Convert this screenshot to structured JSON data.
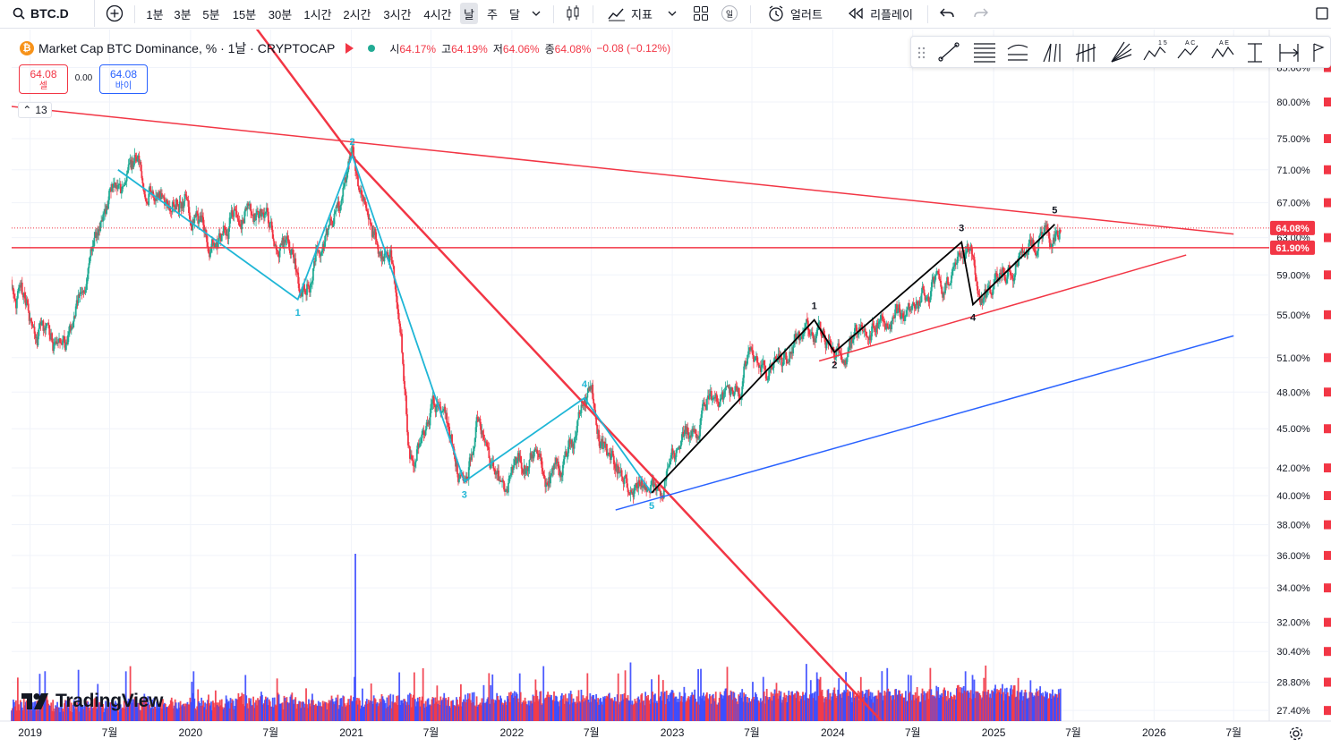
{
  "toolbar": {
    "symbol": "BTC.D",
    "intervals": [
      "1분",
      "3분",
      "5분",
      "15분",
      "30분",
      "1시간",
      "2시간",
      "3시간",
      "4시간",
      "날",
      "주",
      "달"
    ],
    "active_interval": "날",
    "indicators_label": "지표",
    "alert_label": "얼러트",
    "replay_label": "리플레이",
    "layout_badge": "일"
  },
  "legend": {
    "title": "Market Cap BTC Dominance, % · 1날 · CRYPTOCAP",
    "coin_glyph": "₿",
    "open_label": "시",
    "open": "64.17%",
    "high_label": "고",
    "high": "64.19%",
    "low_label": "저",
    "low": "64.06%",
    "close_label": "종",
    "close": "64.08%",
    "change": "−0.08 (−0.12%)"
  },
  "trade": {
    "sell_price": "64.08",
    "sell_label": "셀",
    "spread": "0.00",
    "buy_price": "64.08",
    "buy_label": "바이"
  },
  "collapse": {
    "glyph": "⌃",
    "count": "13"
  },
  "brand": {
    "name": "TradingView"
  },
  "colors": {
    "up": "#22ab94",
    "down": "#f23645",
    "volume_up": "#f23645",
    "volume_down": "#3949ff",
    "trendline": "#f23645",
    "wave_cyan": "#1fb6d6",
    "wave_black": "#000000",
    "support_blue": "#2962ff",
    "text": "#131722",
    "grid": "#f0f3fa"
  },
  "chart_data": {
    "type": "candlestick",
    "symbol": "BTC.D",
    "y_scale": "log",
    "ylim": [
      27.0,
      86.0
    ],
    "yticks": [
      85,
      80,
      75,
      71,
      67,
      63,
      59,
      55,
      51,
      48,
      45,
      42,
      40,
      38,
      36,
      34,
      32,
      30.4,
      28.8,
      27.4
    ],
    "xlim": [
      "2018-11-20",
      "2026-09-20"
    ],
    "xticks": [
      {
        "d": "2019-01-01",
        "label": "2019"
      },
      {
        "d": "2019-07-01",
        "label": "7월"
      },
      {
        "d": "2020-01-01",
        "label": "2020"
      },
      {
        "d": "2020-07-01",
        "label": "7월"
      },
      {
        "d": "2021-01-01",
        "label": "2021"
      },
      {
        "d": "2021-07-01",
        "label": "7월"
      },
      {
        "d": "2022-01-01",
        "label": "2022"
      },
      {
        "d": "2022-07-01",
        "label": "7월"
      },
      {
        "d": "2023-01-01",
        "label": "2023"
      },
      {
        "d": "2023-07-01",
        "label": "7월"
      },
      {
        "d": "2024-01-01",
        "label": "2024"
      },
      {
        "d": "2024-07-01",
        "label": "7월"
      },
      {
        "d": "2025-01-01",
        "label": "2025"
      },
      {
        "d": "2025-07-01",
        "label": "7월"
      },
      {
        "d": "2026-01-01",
        "label": "2026"
      },
      {
        "d": "2026-07-01",
        "label": "7월"
      }
    ],
    "price_path": [
      [
        "2018-11-20",
        58.5
      ],
      [
        "2018-12-20",
        56.0
      ],
      [
        "2019-01-10",
        54.0
      ],
      [
        "2019-02-01",
        52.5
      ],
      [
        "2019-03-01",
        52.0
      ],
      [
        "2019-04-01",
        53.0
      ],
      [
        "2019-04-20",
        56.0
      ],
      [
        "2019-05-15",
        60.0
      ],
      [
        "2019-06-01",
        63.0
      ],
      [
        "2019-06-20",
        66.0
      ],
      [
        "2019-07-10",
        70.0
      ],
      [
        "2019-08-01",
        68.5
      ],
      [
        "2019-09-05",
        71.5
      ],
      [
        "2019-09-20",
        70.0
      ],
      [
        "2019-10-15",
        68.0
      ],
      [
        "2019-11-15",
        67.0
      ],
      [
        "2019-12-20",
        67.5
      ],
      [
        "2020-01-15",
        65.5
      ],
      [
        "2020-02-15",
        62.5
      ],
      [
        "2020-03-10",
        63.5
      ],
      [
        "2020-04-10",
        66.5
      ],
      [
        "2020-05-10",
        67.5
      ],
      [
        "2020-06-01",
        65.5
      ],
      [
        "2020-07-01",
        63.5
      ],
      [
        "2020-08-01",
        62.0
      ],
      [
        "2020-08-25",
        59.5
      ],
      [
        "2020-09-10",
        57.5
      ],
      [
        "2020-09-30",
        58.5
      ],
      [
        "2020-10-20",
        62.0
      ],
      [
        "2020-11-20",
        64.5
      ],
      [
        "2020-12-20",
        69.0
      ],
      [
        "2021-01-03",
        72.5
      ],
      [
        "2021-01-20",
        69.0
      ],
      [
        "2021-02-15",
        63.0
      ],
      [
        "2021-03-05",
        62.0
      ],
      [
        "2021-04-01",
        60.5
      ],
      [
        "2021-04-20",
        55.0
      ],
      [
        "2021-05-10",
        45.0
      ],
      [
        "2021-05-20",
        42.5
      ],
      [
        "2021-06-15",
        44.5
      ],
      [
        "2021-07-01",
        46.5
      ],
      [
        "2021-07-20",
        47.0
      ],
      [
        "2021-08-10",
        45.0
      ],
      [
        "2021-09-01",
        41.5
      ],
      [
        "2021-09-20",
        42.5
      ],
      [
        "2021-10-15",
        45.5
      ],
      [
        "2021-11-05",
        43.0
      ],
      [
        "2021-11-25",
        41.0
      ],
      [
        "2021-12-20",
        40.5
      ],
      [
        "2022-01-20",
        41.5
      ],
      [
        "2022-02-20",
        42.5
      ],
      [
        "2022-03-20",
        41.5
      ],
      [
        "2022-04-20",
        41.5
      ],
      [
        "2022-05-15",
        43.5
      ],
      [
        "2022-06-15",
        46.5
      ],
      [
        "2022-07-01",
        47.5
      ],
      [
        "2022-07-20",
        44.0
      ],
      [
        "2022-08-15",
        42.5
      ],
      [
        "2022-09-10",
        41.0
      ],
      [
        "2022-10-01",
        40.0
      ],
      [
        "2022-10-20",
        40.5
      ],
      [
        "2022-11-10",
        40.0
      ],
      [
        "2022-11-25",
        40.2
      ],
      [
        "2022-12-15",
        40.8
      ],
      [
        "2023-01-10",
        43.0
      ],
      [
        "2023-02-01",
        44.5
      ],
      [
        "2023-03-01",
        44.0
      ],
      [
        "2023-03-25",
        47.5
      ],
      [
        "2023-04-20",
        47.0
      ],
      [
        "2023-05-10",
        47.5
      ],
      [
        "2023-06-01",
        48.5
      ],
      [
        "2023-06-25",
        51.5
      ],
      [
        "2023-07-20",
        50.5
      ],
      [
        "2023-08-15",
        49.5
      ],
      [
        "2023-09-15",
        50.5
      ],
      [
        "2023-10-15",
        52.5
      ],
      [
        "2023-11-10",
        53.0
      ],
      [
        "2023-12-10",
        53.5
      ],
      [
        "2024-01-01",
        52.5
      ],
      [
        "2024-01-20",
        51.5
      ],
      [
        "2024-02-15",
        52.5
      ],
      [
        "2024-03-15",
        53.5
      ],
      [
        "2024-04-15",
        54.5
      ],
      [
        "2024-05-15",
        55.0
      ],
      [
        "2024-06-15",
        55.5
      ],
      [
        "2024-07-15",
        56.0
      ],
      [
        "2024-08-15",
        57.5
      ],
      [
        "2024-09-15",
        58.5
      ],
      [
        "2024-10-15",
        59.5
      ],
      [
        "2024-11-15",
        61.5
      ],
      [
        "2024-11-28",
        57.0
      ],
      [
        "2024-12-15",
        56.5
      ],
      [
        "2025-01-10",
        58.0
      ],
      [
        "2025-02-10",
        60.5
      ],
      [
        "2025-03-10",
        61.0
      ],
      [
        "2025-04-10",
        62.5
      ],
      [
        "2025-05-01",
        63.5
      ],
      [
        "2025-05-10",
        62.0
      ],
      [
        "2025-05-20",
        64.0
      ],
      [
        "2025-06-03",
        64.08
      ]
    ],
    "horizontal_level": 61.9,
    "price_labels": [
      {
        "value": 64.08,
        "text": "64.08%"
      },
      {
        "value": 61.9,
        "text": "61.90%"
      }
    ],
    "trendlines": [
      {
        "name": "upper-resistance",
        "color": "#f23645",
        "width": 1.5,
        "points": [
          [
            "2018-11-01",
            79.5
          ],
          [
            "2026-07-01",
            63.4
          ]
        ]
      },
      {
        "name": "steep-downtrend",
        "color": "#f23645",
        "width": 2.5,
        "points": [
          [
            "2020-03-20",
            98.0
          ],
          [
            "2021-01-01",
            72.8
          ],
          [
            "2024-06-01",
            26.0
          ]
        ]
      },
      {
        "name": "lower-channel",
        "color": "#f23645",
        "width": 1.5,
        "points": [
          [
            "2023-12-01",
            50.7
          ],
          [
            "2026-03-15",
            61.1
          ]
        ]
      },
      {
        "name": "blue-support",
        "color": "#2962ff",
        "width": 1.5,
        "points": [
          [
            "2022-08-25",
            39.0
          ],
          [
            "2026-07-01",
            53.0
          ]
        ]
      }
    ],
    "waves": [
      {
        "color": "#1fb6d6",
        "points": [
          [
            "2019-07-20",
            71.0
          ],
          [
            "2020-09-01",
            56.5
          ],
          [
            "2021-01-03",
            72.8
          ],
          [
            "2021-09-15",
            41.0
          ],
          [
            "2022-06-15",
            47.5
          ],
          [
            "2022-11-15",
            40.2
          ]
        ],
        "labels": [
          "",
          "1",
          "2",
          "3",
          "4",
          "5"
        ]
      },
      {
        "color": "#000000",
        "points": [
          [
            "2022-11-15",
            40.2
          ],
          [
            "2023-11-20",
            54.5
          ],
          [
            "2024-01-05",
            51.5
          ],
          [
            "2024-10-20",
            62.5
          ],
          [
            "2024-11-15",
            56.0
          ],
          [
            "2025-05-20",
            64.5
          ]
        ],
        "labels": [
          "",
          "1",
          "2",
          "3",
          "4",
          "5"
        ]
      }
    ],
    "extra_segments": [
      {
        "color": "#000000",
        "points": [
          [
            "2024-01-05",
            51.5
          ],
          [
            "2024-10-20",
            62.5
          ]
        ]
      },
      {
        "color": "#000000",
        "points": [
          [
            "2024-11-15",
            56.0
          ],
          [
            "2025-05-20",
            64.5
          ]
        ]
      }
    ],
    "wave_label_offsets": [
      [
        0,
        0
      ],
      [
        0,
        18
      ],
      [
        0,
        -12
      ],
      [
        0,
        18
      ],
      [
        0,
        -12
      ],
      [
        0,
        18
      ],
      [
        0,
        0
      ],
      [
        0,
        -12
      ],
      [
        0,
        18
      ],
      [
        0,
        -12
      ],
      [
        0,
        18
      ],
      [
        0,
        -12
      ]
    ],
    "volume": {
      "max_date": "2021-01-10",
      "peak_ratio": 0.42
    }
  }
}
